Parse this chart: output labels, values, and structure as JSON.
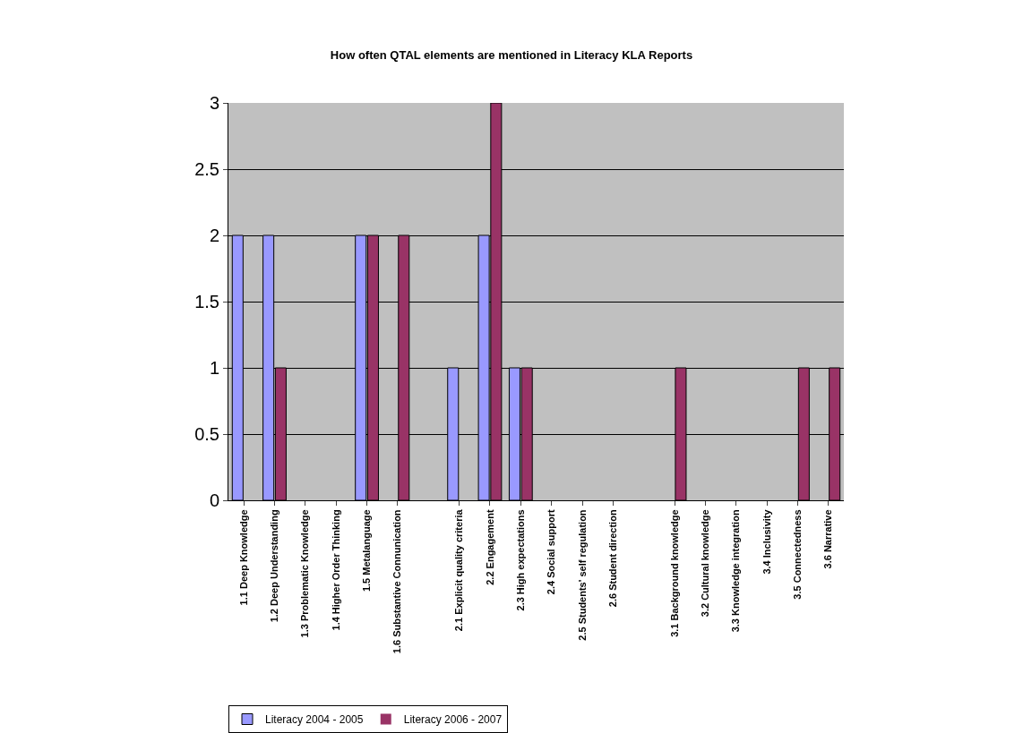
{
  "chart_data": {
    "type": "bar",
    "title": "How often QTAL elements are mentioned in Literacy KLA Reports",
    "categories": [
      "1.1 Deep Knowledge",
      "1.2 Deep Understanding",
      "1.3 Problematic Knowledge",
      "1.4 Higher Order Thinking",
      "1.5 Metalanguage",
      "1.6 Substantive Connunication",
      null,
      "2.1 Explicit quality criteria",
      "2.2 Engagement",
      "2.3 High expectations",
      "2.4 Social support",
      "2.5 Students' self regulation",
      "2.6 Student direction",
      null,
      "3.1 Background knowledge",
      "3.2 Cultural knowledge",
      "3.3 Knowledge integration",
      "3.4 Inclusivity",
      "3.5 Connectedness",
      "3.6 Narrative"
    ],
    "series": [
      {
        "name": "Literacy 2004 - 2005",
        "color": "#9999ff",
        "values": [
          2,
          2,
          0,
          0,
          2,
          0,
          null,
          1,
          2,
          1,
          0,
          0,
          0,
          null,
          0,
          0,
          0,
          0,
          0,
          0
        ]
      },
      {
        "name": "Literacy 2006 - 2007",
        "color": "#993366",
        "values": [
          0,
          1,
          0,
          0,
          2,
          2,
          null,
          0,
          3,
          1,
          0,
          0,
          0,
          null,
          1,
          0,
          0,
          0,
          1,
          1
        ]
      }
    ],
    "ylim": [
      0,
      3
    ],
    "yticks": [
      0,
      0.5,
      1,
      1.5,
      2,
      2.5,
      3
    ],
    "grid": "y",
    "legend": "bottom left"
  }
}
